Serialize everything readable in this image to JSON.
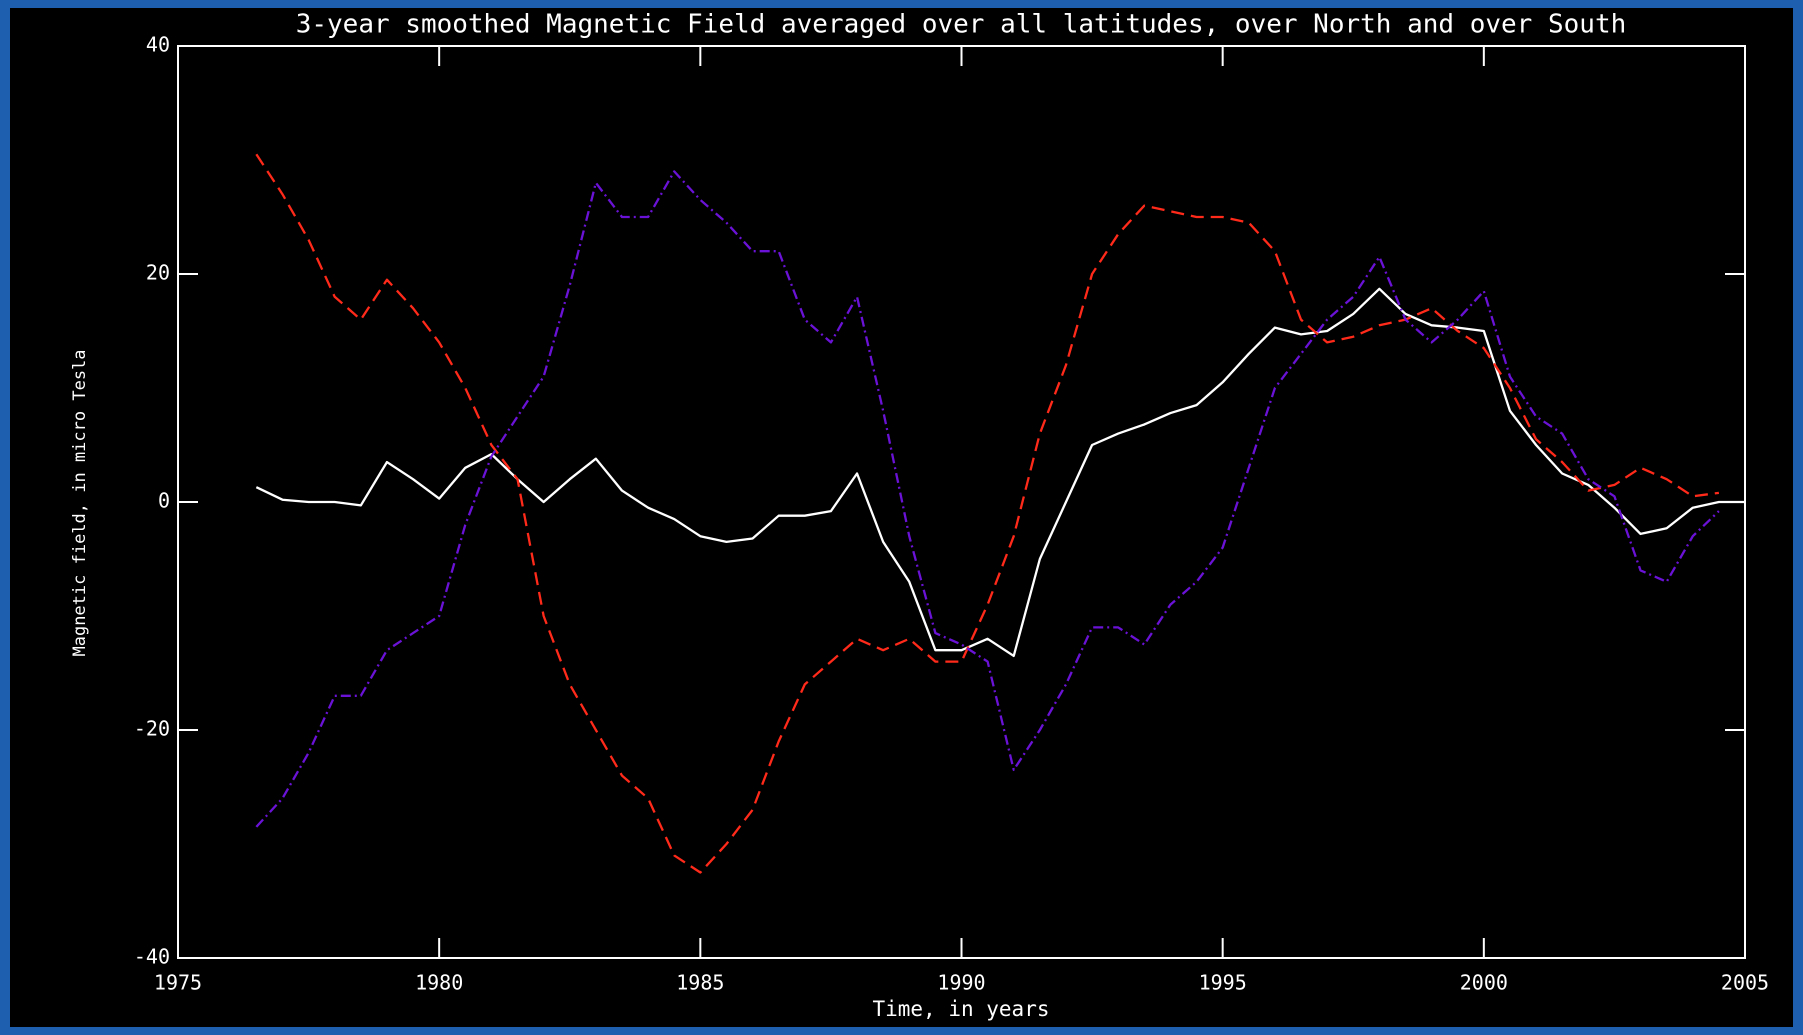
{
  "chart_data": {
    "type": "line",
    "title": "3-year smoothed Magnetic Field averaged over all latitudes, over North and over South",
    "x_label": "Time, in years",
    "y_label": "Magnetic field, in micro Tesla",
    "x": [
      1976.5,
      1977,
      1977.5,
      1978,
      1978.5,
      1979,
      1979.5,
      1980,
      1980.5,
      1981,
      1981.5,
      1982,
      1982.5,
      1983,
      1983.5,
      1984,
      1984.5,
      1985,
      1985.5,
      1986,
      1986.5,
      1987,
      1987.5,
      1988,
      1988.5,
      1989,
      1989.5,
      1990,
      1990.5,
      1991,
      1991.5,
      1992,
      1992.5,
      1993,
      1993.5,
      1994,
      1994.5,
      1995,
      1995.5,
      1996,
      1996.5,
      1997,
      1997.5,
      1998,
      1998.5,
      1999,
      1999.5,
      2000,
      2000.5,
      2001,
      2001.5,
      2002,
      2002.5,
      2003,
      2003.5,
      2004,
      2004.5,
      2005
    ],
    "series": [
      {
        "color": "#ffffff",
        "dash": "none",
        "values": [
          1.3,
          0.2,
          0,
          0,
          -0.3,
          3.5,
          2,
          0.3,
          3,
          4.2,
          2,
          0,
          2,
          3.8,
          1,
          -0.5,
          -1.5,
          -3,
          -3.5,
          -3.2,
          -1.2,
          -1.2,
          -0.8,
          2.5,
          -3.5,
          -7,
          -13,
          -13,
          -12,
          -13.5,
          -5,
          0,
          5,
          6,
          6.8,
          7.8,
          8.5,
          10.5,
          13,
          15.3,
          14.7,
          15,
          16.5,
          18.7,
          16.5,
          15.5,
          15.3,
          15,
          8,
          5,
          2.5,
          1.5,
          -0.5,
          -2.8,
          -2.3,
          -0.5,
          0,
          0
        ]
      },
      {
        "color": "#ff2a1a",
        "dash": "13 7",
        "values": [
          30.5,
          27,
          23,
          18,
          16,
          19.5,
          17,
          14,
          10,
          5,
          2,
          -10,
          -16,
          -20,
          -24,
          -26,
          -31,
          -32.5,
          -30,
          -27,
          -21,
          -16,
          -14,
          -12,
          -13,
          -12,
          -14,
          -14,
          -9,
          -3,
          6,
          12,
          20,
          23.5,
          26,
          25.5,
          25,
          25,
          24.5,
          22,
          16,
          14,
          14.5,
          15.5,
          16,
          17,
          15,
          13.5,
          10,
          5.5,
          3.5,
          1,
          1.5,
          3,
          2,
          0.5,
          0.8,
          null
        ]
      },
      {
        "color": "#6a12d6",
        "dash": "10 4 2 4",
        "values": [
          -28.5,
          -26,
          -22,
          -17,
          -17,
          -13,
          -11.5,
          -10,
          -2,
          4,
          7.5,
          11,
          19,
          28,
          25,
          25,
          29,
          26.5,
          24.5,
          22,
          22,
          16,
          14,
          18,
          8,
          -3,
          -11.5,
          -12.5,
          -14,
          -23.5,
          -20,
          -16,
          -11,
          -11,
          -12.5,
          -9,
          -7,
          -4,
          3,
          10,
          13,
          16,
          18,
          21.5,
          16,
          14,
          16,
          18.5,
          11,
          7.5,
          6,
          2,
          0.5,
          -6,
          -7,
          -3,
          -0.8,
          null
        ]
      }
    ],
    "xlim": [
      1975,
      2005
    ],
    "xticks": [
      1975,
      1980,
      1985,
      1990,
      1995,
      2000,
      2005
    ],
    "ylim": [
      -40,
      40
    ],
    "yticks": [
      -40,
      -20,
      0,
      20,
      40
    ]
  }
}
